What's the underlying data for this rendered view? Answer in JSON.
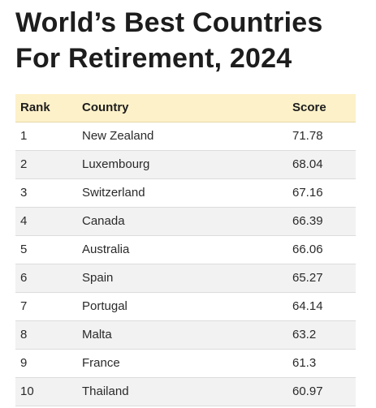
{
  "title_lines": [
    "World’s Best Countries",
    "For Retirement, 2024"
  ],
  "colors": {
    "header_bg": "#fdf1c9",
    "alt_row_bg": "#f2f2f2",
    "text": "#222222"
  },
  "chart_data": {
    "type": "table",
    "title": "World’s Best Countries For Retirement, 2024",
    "columns": [
      "Rank",
      "Country",
      "Score"
    ],
    "rows": [
      [
        "1",
        "New Zealand",
        "71.78"
      ],
      [
        "2",
        "Luxembourg",
        "68.04"
      ],
      [
        "3",
        "Switzerland",
        "67.16"
      ],
      [
        "4",
        "Canada",
        "66.39"
      ],
      [
        "5",
        "Australia",
        "66.06"
      ],
      [
        "6",
        "Spain",
        "65.27"
      ],
      [
        "7",
        "Portugal",
        "64.14"
      ],
      [
        "8",
        "Malta",
        "63.2"
      ],
      [
        "9",
        "France",
        "61.3"
      ],
      [
        "10",
        "Thailand",
        "60.97"
      ]
    ]
  }
}
